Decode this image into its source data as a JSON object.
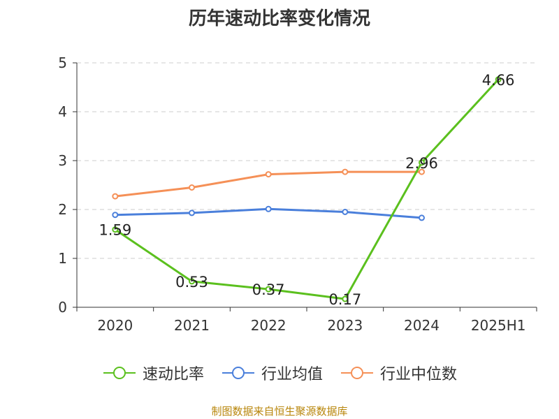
{
  "chart_data": {
    "type": "line",
    "title": "历年速动比率变化情况",
    "categories": [
      "2020",
      "2021",
      "2022",
      "2023",
      "2024",
      "2025H1"
    ],
    "ylim": [
      0,
      5
    ],
    "yticks": [
      "0",
      "1",
      "2",
      "3",
      "4",
      "5"
    ],
    "grid": true,
    "legend_position": "bottom",
    "series": [
      {
        "name": "速动比率",
        "color": "#5bc01e",
        "values": [
          1.59,
          0.53,
          0.37,
          0.17,
          2.96,
          4.66
        ],
        "labels": [
          "1.59",
          "0.53",
          "0.37",
          "0.17",
          "2.96",
          "4.66"
        ]
      },
      {
        "name": "行业均值",
        "color": "#4a7fdb",
        "values": [
          1.89,
          1.93,
          2.01,
          1.95,
          1.83,
          null
        ]
      },
      {
        "name": "行业中位数",
        "color": "#f59057",
        "values": [
          2.27,
          2.45,
          2.72,
          2.77,
          2.77,
          null
        ]
      }
    ]
  },
  "source": "制图数据来自恒生聚源数据库"
}
